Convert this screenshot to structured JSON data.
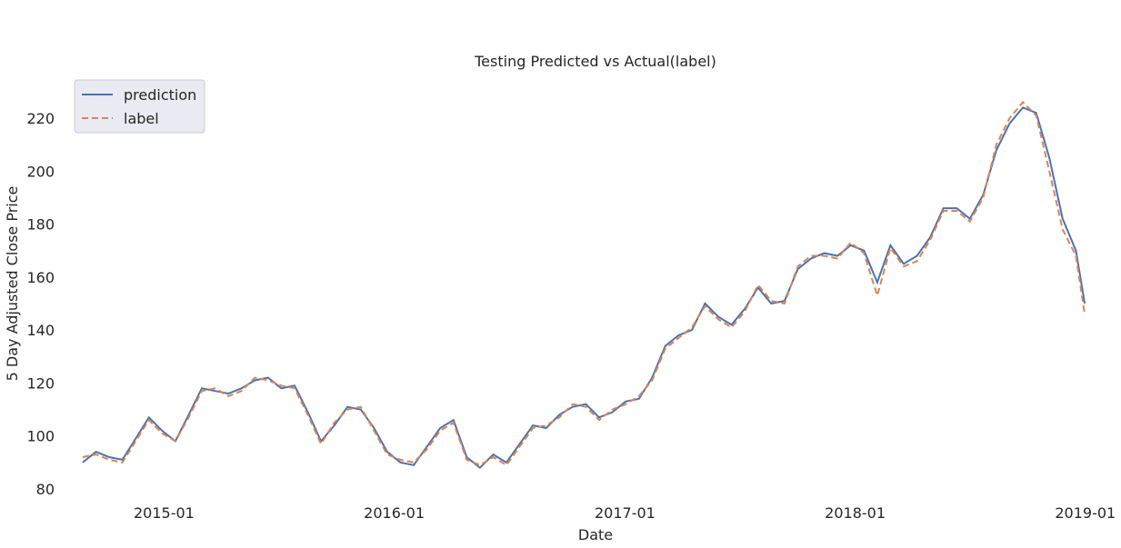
{
  "chart_data": {
    "type": "line",
    "title": "Testing Predicted vs Actual(label)",
    "xlabel": "Date",
    "ylabel": "5 Day Adjusted Close Price",
    "xlim": [
      "2014-08-15",
      "2019-01-10"
    ],
    "ylim": [
      80,
      232
    ],
    "x_ticks": [
      "2015-01-01",
      "2016-01-01",
      "2017-01-01",
      "2018-01-01",
      "2019-01-01"
    ],
    "x_tick_labels": [
      "2015-01",
      "2016-01",
      "2017-01",
      "2018-01",
      "2019-01"
    ],
    "y_ticks": [
      80,
      100,
      120,
      140,
      160,
      180,
      200,
      220
    ],
    "y_tick_labels": [
      "80",
      "100",
      "120",
      "140",
      "160",
      "180",
      "200",
      "220"
    ],
    "grid": false,
    "legend_position": "top-left",
    "colors": {
      "prediction": "#4c72b0",
      "label": "#dd8452",
      "legend_bg": "#eaeaf2"
    },
    "x": [
      "2014-08-25",
      "2014-09-15",
      "2014-10-06",
      "2014-10-27",
      "2014-11-17",
      "2014-12-08",
      "2014-12-29",
      "2015-01-19",
      "2015-02-09",
      "2015-03-02",
      "2015-03-23",
      "2015-04-13",
      "2015-05-04",
      "2015-05-25",
      "2015-06-15",
      "2015-07-06",
      "2015-07-27",
      "2015-08-17",
      "2015-09-07",
      "2015-09-28",
      "2015-10-19",
      "2015-11-09",
      "2015-11-30",
      "2015-12-21",
      "2016-01-11",
      "2016-02-01",
      "2016-02-22",
      "2016-03-14",
      "2016-04-04",
      "2016-04-25",
      "2016-05-16",
      "2016-06-06",
      "2016-06-27",
      "2016-07-18",
      "2016-08-08",
      "2016-08-29",
      "2016-09-19",
      "2016-10-10",
      "2016-10-31",
      "2016-11-21",
      "2016-12-12",
      "2017-01-02",
      "2017-01-23",
      "2017-02-13",
      "2017-03-06",
      "2017-03-27",
      "2017-04-17",
      "2017-05-08",
      "2017-05-29",
      "2017-06-19",
      "2017-07-10",
      "2017-07-31",
      "2017-08-21",
      "2017-09-11",
      "2017-10-02",
      "2017-10-23",
      "2017-11-13",
      "2017-12-04",
      "2017-12-25",
      "2018-01-15",
      "2018-02-05",
      "2018-02-26",
      "2018-03-19",
      "2018-04-09",
      "2018-04-30",
      "2018-05-21",
      "2018-06-11",
      "2018-07-02",
      "2018-07-23",
      "2018-08-13",
      "2018-09-03",
      "2018-09-24",
      "2018-10-15",
      "2018-11-05",
      "2018-11-26",
      "2018-12-17",
      "2018-12-31"
    ],
    "series": [
      {
        "name": "prediction",
        "style": "solid",
        "values": [
          90,
          94,
          92,
          91,
          99,
          107,
          102,
          98,
          108,
          118,
          117,
          116,
          118,
          121,
          122,
          118,
          119,
          109,
          98,
          104,
          111,
          110,
          103,
          94,
          90,
          89,
          96,
          103,
          106,
          92,
          88,
          93,
          90,
          97,
          104,
          103,
          108,
          111,
          112,
          107,
          109,
          113,
          114,
          122,
          134,
          138,
          140,
          150,
          145,
          142,
          148,
          156,
          150,
          151,
          163,
          167,
          169,
          168,
          172,
          170,
          158,
          172,
          165,
          168,
          175,
          186,
          186,
          182,
          191,
          208,
          218,
          224,
          222,
          205,
          182,
          170,
          150
        ]
      },
      {
        "name": "label",
        "style": "dashed",
        "values": [
          92,
          93,
          91,
          90,
          98,
          106,
          101,
          98,
          107,
          117,
          118,
          115,
          117,
          122,
          121,
          119,
          118,
          108,
          97,
          105,
          110,
          111,
          102,
          93,
          91,
          90,
          95,
          102,
          105,
          91,
          89,
          92,
          89,
          96,
          103,
          104,
          107,
          112,
          111,
          106,
          110,
          112,
          115,
          121,
          133,
          137,
          141,
          149,
          144,
          141,
          147,
          157,
          151,
          150,
          164,
          168,
          168,
          167,
          173,
          169,
          153,
          171,
          164,
          166,
          174,
          185,
          185,
          181,
          190,
          210,
          220,
          226,
          221,
          200,
          178,
          168,
          146
        ]
      }
    ]
  }
}
